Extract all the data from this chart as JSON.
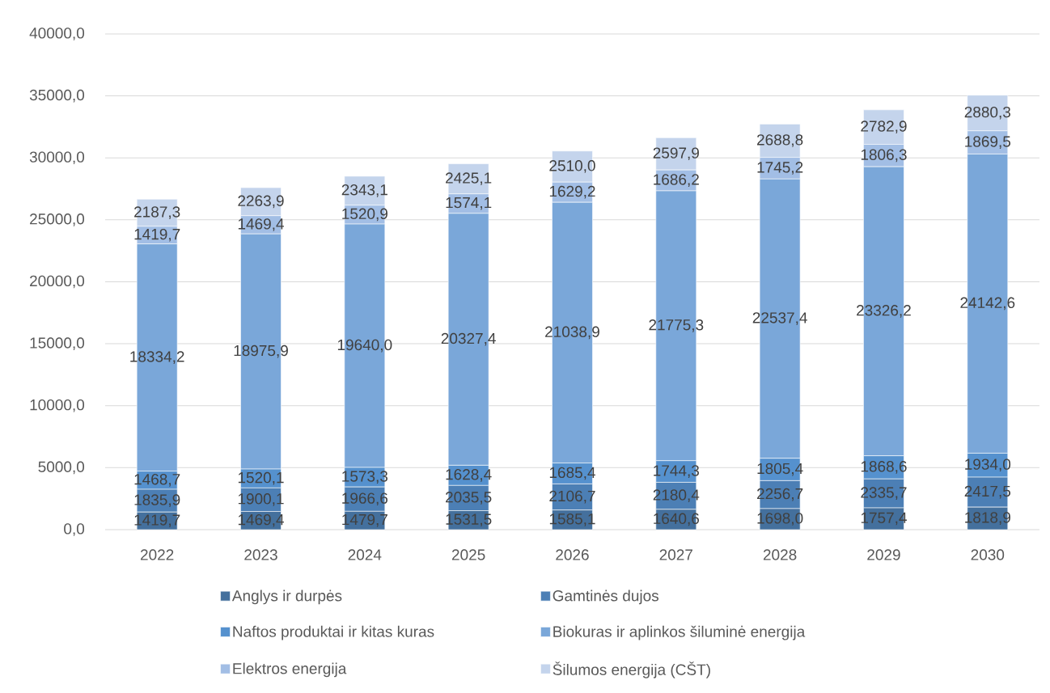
{
  "chart_data": {
    "type": "bar",
    "stacked": true,
    "categories": [
      "2022",
      "2023",
      "2024",
      "2025",
      "2026",
      "2027",
      "2028",
      "2029",
      "2030"
    ],
    "series": [
      {
        "name": "Anglys ir durpės",
        "color": "#44709d",
        "values": [
          1419.7,
          1469.4,
          1479.7,
          1531.5,
          1585.1,
          1640.6,
          1698.0,
          1757.4,
          1818.9
        ],
        "value_labels": [
          "1419,7",
          "1469,4",
          "1479,7",
          "1531,5",
          "1585,1",
          "1640,6",
          "1698,0",
          "1757,4",
          "1818,9"
        ]
      },
      {
        "name": "Gamtinės dujos",
        "color": "#4c7fb5",
        "values": [
          1835.9,
          1900.1,
          1966.6,
          2035.5,
          2106.7,
          2180.4,
          2256.7,
          2335.7,
          2417.5
        ],
        "value_labels": [
          "1835,9",
          "1900,1",
          "1966,6",
          "2035,5",
          "2106,7",
          "2180,4",
          "2256,7",
          "2335,7",
          "2417,5"
        ]
      },
      {
        "name": "Naftos produktai ir kitas kuras",
        "color": "#5591ce",
        "values": [
          1468.7,
          1520.1,
          1573.3,
          1628.4,
          1685.4,
          1744.3,
          1805.4,
          1868.6,
          1934.0
        ],
        "value_labels": [
          "1468,7",
          "1520,1",
          "1573,3",
          "1628,4",
          "1685,4",
          "1744,3",
          "1805,4",
          "1868,6",
          "1934,0"
        ]
      },
      {
        "name": "Biokuras ir aplinkos šiluminė energija",
        "color": "#7aa7d9",
        "values": [
          18334.2,
          18975.9,
          19640.0,
          20327.4,
          21038.9,
          21775.3,
          22537.4,
          23326.2,
          24142.6
        ],
        "value_labels": [
          "18334,2",
          "18975,9",
          "19640,0",
          "20327,4",
          "21038,9",
          "21775,3",
          "22537,4",
          "23326,2",
          "24142,6"
        ]
      },
      {
        "name": "Elektros energija",
        "color": "#a2bee5",
        "values": [
          1419.7,
          1469.4,
          1520.9,
          1574.1,
          1629.2,
          1686.2,
          1745.2,
          1806.3,
          1869.5
        ],
        "value_labels": [
          "1419,7",
          "1469,4",
          "1520,9",
          "1574,1",
          "1629,2",
          "1686,2",
          "1745,2",
          "1806,3",
          "1869,5"
        ]
      },
      {
        "name": "Šilumos energija (CŠT)",
        "color": "#c4d4ec",
        "values": [
          2187.3,
          2263.9,
          2343.1,
          2425.1,
          2510.0,
          2597.9,
          2688.8,
          2782.9,
          2880.3
        ],
        "value_labels": [
          "2187,3",
          "2263,9",
          "2343,1",
          "2425,1",
          "2510,0",
          "2597,9",
          "2688,8",
          "2782,9",
          "2880,3"
        ]
      }
    ],
    "ylim": [
      0,
      40000
    ],
    "yticks": [
      {
        "value": 0,
        "label": "0,0"
      },
      {
        "value": 5000,
        "label": "5000,0"
      },
      {
        "value": 10000,
        "label": "10000,0"
      },
      {
        "value": 15000,
        "label": "15000,0"
      },
      {
        "value": 20000,
        "label": "20000,0"
      },
      {
        "value": 25000,
        "label": "25000,0"
      },
      {
        "value": 30000,
        "label": "30000,0"
      },
      {
        "value": 35000,
        "label": "35000,0"
      },
      {
        "value": 40000,
        "label": "40000,0"
      }
    ],
    "grid": "y",
    "legend": "bottom"
  }
}
